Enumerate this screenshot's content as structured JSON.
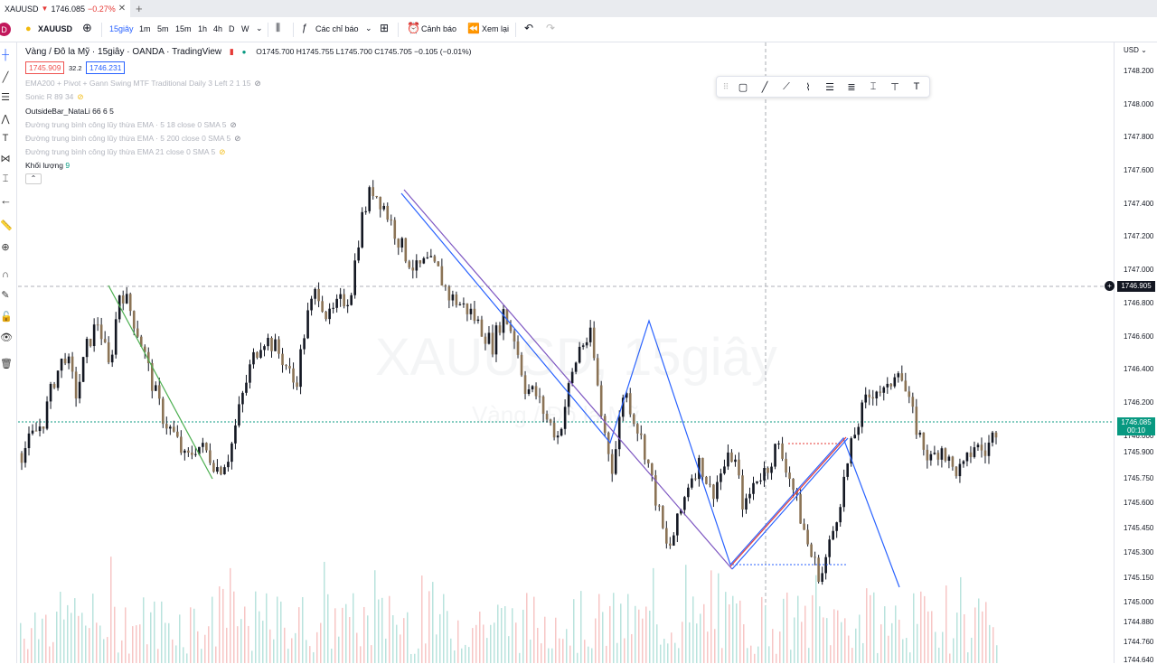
{
  "tab": {
    "symbol": "XAUUSD",
    "arrow": "▼",
    "price": "1746.085",
    "change": "−0.27%",
    "close": "✕",
    "newtab": "+"
  },
  "toolbar": {
    "avatar": "D",
    "symbol": "XAUUSD",
    "intervals": [
      "15giây",
      "1m",
      "5m",
      "15m",
      "1h",
      "4h",
      "D",
      "W"
    ],
    "indicators": "Các chỉ báo",
    "alert": "Cảnh báo",
    "replay": "Xem lại"
  },
  "legend": {
    "title": "Vàng / Đô la Mỹ · 15giây · OANDA · TradingView",
    "ohlc": "O1745.700  H1745.755  L1745.700  C1745.705  −0.105 (−0.01%)",
    "bid": "1745.909",
    "spread": "32.2",
    "ask": "1746.231"
  },
  "indicators": [
    {
      "label": "EMA200 + Pivot + Gann Swing MTF Traditional Daily 3 Left 2 1 15",
      "style": "faded",
      "eye": "hidden"
    },
    {
      "label": "Sonic R 89 34",
      "style": "faded",
      "eye": "yellow"
    },
    {
      "label": "OutsideBar_NataLi 66 6 5",
      "style": "dark",
      "eye": ""
    },
    {
      "label": "Đường trung bình công lũy thừa EMA · 5 18 close 0 SMA 5",
      "style": "faded",
      "eye": "hidden"
    },
    {
      "label": "Đường trung bình công lũy thừa EMA · 5 200 close 0 SMA 5",
      "style": "faded",
      "eye": "hidden"
    },
    {
      "label": "Đường trung bình công lũy thừa EMA 21 close 0 SMA 5",
      "style": "faded",
      "eye": "yellow"
    },
    {
      "label": "Khối lượng",
      "value": "9",
      "style": "dark",
      "eye": ""
    }
  ],
  "watermark": {
    "symbol": "XAUUSD, 15giây",
    "name": "Vàng / Đô la Mỹ"
  },
  "price_axis": {
    "currency": "USD",
    "ticks": [
      "1748.200",
      "1748.000",
      "1747.800",
      "1747.600",
      "1747.400",
      "1747.200",
      "1747.000",
      "1746.800",
      "1746.600",
      "1746.400",
      "1746.200",
      "1746.000",
      "1745.900",
      "1745.750",
      "1745.600",
      "1745.450",
      "1745.300",
      "1745.150",
      "1745.000",
      "1744.880",
      "1744.760",
      "1744.640"
    ],
    "crosshair_price": "1746.905",
    "last_price": "1746.085",
    "countdown": "00:10"
  },
  "colors": {
    "up": "#131722",
    "down": "#131722",
    "accent": "#2962ff",
    "last": "#089981",
    "zigzag": "#2962ff",
    "trend_green": "#4caf50",
    "trend_red": "#e53935"
  },
  "chart_data": {
    "type": "candlestick",
    "y_range": [
      1744.64,
      1748.2
    ],
    "price_path": [
      1745.9,
      1746.0,
      1746.1,
      1746.35,
      1746.5,
      1746.25,
      1746.55,
      1746.7,
      1746.4,
      1746.9,
      1746.75,
      1746.55,
      1746.3,
      1746.1,
      1746.0,
      1745.85,
      1745.95,
      1745.9,
      1745.8,
      1745.9,
      1746.2,
      1746.45,
      1746.6,
      1746.55,
      1746.45,
      1746.3,
      1746.7,
      1746.9,
      1746.7,
      1746.8,
      1746.85,
      1747.3,
      1747.5,
      1747.4,
      1747.25,
      1747.1,
      1747.0,
      1747.05,
      1747.0,
      1746.85,
      1746.8,
      1746.75,
      1746.65,
      1746.55,
      1746.75,
      1746.6,
      1746.3,
      1746.25,
      1746.1,
      1746.0,
      1746.3,
      1746.55,
      1746.6,
      1746.1,
      1745.8,
      1746.3,
      1746.1,
      1745.9,
      1745.6,
      1745.3,
      1745.5,
      1745.75,
      1745.85,
      1745.65,
      1745.8,
      1745.9,
      1745.55,
      1745.75,
      1745.8,
      1745.95,
      1745.8,
      1745.55,
      1745.3,
      1745.15,
      1745.4,
      1745.7,
      1746.0,
      1746.2,
      1746.3,
      1746.25,
      1746.45,
      1746.2,
      1746.0,
      1745.85,
      1745.95,
      1745.8,
      1745.8,
      1745.95,
      1745.9,
      1746.05
    ]
  }
}
